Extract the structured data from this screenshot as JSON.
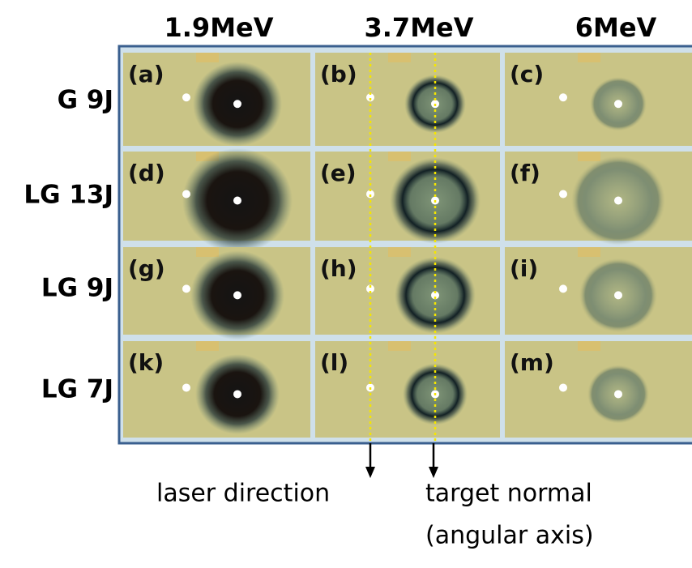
{
  "column_headers": [
    "1.9MeV",
    "3.7MeV",
    "6MeV"
  ],
  "row_labels": [
    "G 9J",
    "LG 13J",
    "LG 9J",
    "LG 7J"
  ],
  "panels": [
    [
      "(a)",
      "(b)",
      "(c)"
    ],
    [
      "(d)",
      "(e)",
      "(f)"
    ],
    [
      "(g)",
      "(h)",
      "(i)"
    ],
    [
      "(k)",
      "(l)",
      "(m)"
    ]
  ],
  "annotations": {
    "laser_direction": "laser direction",
    "target_normal": "target normal",
    "angular_axis": "(angular axis)"
  }
}
